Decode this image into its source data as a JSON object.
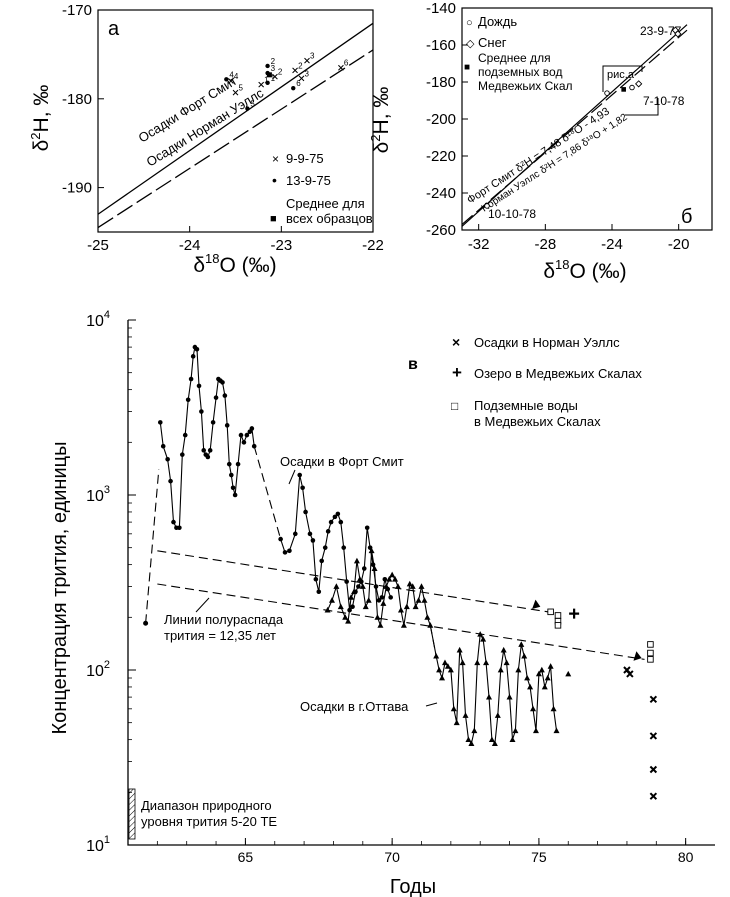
{
  "chart_data": [
    {
      "type": "scatter",
      "panel_letter": "а",
      "xlabel_main": "δ",
      "xlabel_sup": "18",
      "xlabel_rest": "O (‰)",
      "ylabel_main": "δ",
      "ylabel_sup": "2",
      "ylabel_rest": "H, ‰",
      "xlim": [
        -25,
        -22
      ],
      "ylim": [
        -195,
        -170
      ],
      "xticks": [
        -25,
        -24,
        -23,
        -22
      ],
      "yticks": [
        -190,
        -180,
        -170
      ],
      "xtick_labels": [
        "-25",
        "-24",
        "-23",
        "-22"
      ],
      "ytick_labels": [
        "-190",
        "-180",
        "-170"
      ],
      "lines": [
        {
          "name": "Осадки Форт Смит",
          "style": "solid",
          "from": [
            -25,
            -193.0
          ],
          "to": [
            -22,
            -171.5
          ]
        },
        {
          "name": "Осадки Норман Уэллс",
          "style": "dashed",
          "from": [
            -25,
            -194.5
          ],
          "to": [
            -22,
            -174.5
          ]
        }
      ],
      "line_labels": [
        "Осадки Форт Смит",
        "Осадки Норман Уэллс"
      ],
      "legend": {
        "placement": "bottom-right",
        "entries": [
          {
            "marker": "×",
            "label": "9-9-75"
          },
          {
            "marker": "•",
            "label": "13-9-75"
          },
          {
            "marker": "■",
            "label": "Среднее для всех образцов"
          }
        ]
      },
      "series": [
        {
          "name": "9-9-75",
          "marker": "x",
          "points": [
            {
              "x": -23.55,
              "y": -178.0,
              "label": "4"
            },
            {
              "x": -23.5,
              "y": -179.3,
              "label": "5"
            },
            {
              "x": -23.22,
              "y": -178.4,
              "label": "1"
            },
            {
              "x": -23.07,
              "y": -177.5,
              "label": "2"
            },
            {
              "x": -22.78,
              "y": -177.7,
              "label": "3"
            },
            {
              "x": -22.72,
              "y": -175.7,
              "label": "3"
            },
            {
              "x": -22.85,
              "y": -176.8,
              "label": "2"
            },
            {
              "x": -22.35,
              "y": -176.5,
              "label": "6"
            }
          ]
        },
        {
          "name": "13-9-75",
          "marker": "dot",
          "points": [
            {
              "x": -23.6,
              "y": -177.8,
              "label": "4"
            },
            {
              "x": -23.15,
              "y": -176.3,
              "label": "2"
            },
            {
              "x": -23.15,
              "y": -177.1,
              "label": "3"
            },
            {
              "x": -23.15,
              "y": -178.2,
              "label": "1"
            },
            {
              "x": -23.37,
              "y": -181.1,
              "label": "5"
            },
            {
              "x": -22.87,
              "y": -178.8,
              "label": "6"
            }
          ]
        },
        {
          "name": "Среднее для всех образцов",
          "marker": "square",
          "points": [
            {
              "x": -23.13,
              "y": -177.3,
              "label": ""
            }
          ]
        }
      ]
    },
    {
      "type": "scatter",
      "panel_letter": "б",
      "xlabel_main": "δ",
      "xlabel_sup": "18",
      "xlabel_rest": "O (‰)",
      "ylabel_main": "δ",
      "ylabel_sup": "2",
      "ylabel_rest": "H, ‰",
      "xlim": [
        -33,
        -18
      ],
      "ylim": [
        -260,
        -140
      ],
      "xticks": [
        -32,
        -28,
        -24,
        -20
      ],
      "yticks": [
        -260,
        -240,
        -220,
        -200,
        -180,
        -160,
        -140
      ],
      "xtick_labels": [
        "-32",
        "-28",
        "-24",
        "-20"
      ],
      "ytick_labels": [
        "-260",
        "-240",
        "-220",
        "-200",
        "-180",
        "-160",
        "-140"
      ],
      "legend": {
        "placement": "top-left",
        "entries": [
          {
            "marker": "○",
            "label": "Дождь"
          },
          {
            "marker": "◇",
            "label": "Снег"
          },
          {
            "marker": "■",
            "label": "Среднее для подземных вод Медвежьих Скал"
          }
        ]
      },
      "lines": [
        {
          "name": "Форт Смит",
          "style": "solid",
          "from": [
            -33,
            -258.0
          ],
          "to": [
            -19.5,
            -149.0
          ]
        },
        {
          "name": "Норман Уэллс",
          "style": "dashed",
          "from": [
            -33,
            -257.0
          ],
          "to": [
            -19.5,
            -152.0
          ]
        }
      ],
      "equations": {
        "fort_smith_name": "Форт Смит",
        "fort_smith_eq": "δ²H = 7,48 δ¹⁸O - 4,93",
        "norman_wells_name": "Норман Уэллс",
        "norman_wells_eq": "δ²H = 7,86 δ¹⁸O + 1,82"
      },
      "annotations": [
        "23-9-77",
        "рис.а",
        "7-10-78",
        "10-10-78"
      ],
      "series": [
        {
          "name": "Дождь",
          "marker": "circle",
          "points": [
            {
              "x": -31.5,
              "y": -247.0
            },
            {
              "x": -22.8,
              "y": -183.0
            },
            {
              "x": -24.3,
              "y": -186.0
            }
          ]
        },
        {
          "name": "Снег",
          "marker": "diamond",
          "points": [
            {
              "x": -20.2,
              "y": -152.0
            },
            {
              "x": -20.05,
              "y": -154.0
            },
            {
              "x": -22.4,
              "y": -181.0
            }
          ]
        },
        {
          "name": "Среднее для подземных вод Медвежьих Скал",
          "marker": "square",
          "points": [
            {
              "x": -23.3,
              "y": -184.0
            }
          ]
        }
      ]
    },
    {
      "type": "line",
      "panel_letter": "в",
      "xlabel": "Годы",
      "ylabel": "Концентрация трития, единицы",
      "y_scale": "log",
      "xlim": [
        1961,
        1981
      ],
      "ylim": [
        10,
        10000
      ],
      "xticks": [
        65,
        70,
        75,
        80
      ],
      "xtick_labels": [
        "65",
        "70",
        "75",
        "80"
      ],
      "yticks": [
        10,
        100,
        1000,
        10000
      ],
      "ytick_base": "10",
      "ytick_exponents": [
        "1",
        "2",
        "3",
        "4"
      ],
      "legend": {
        "placement": "top-right",
        "entries": [
          {
            "marker": "×",
            "label": "Осадки в Норман Уэллс"
          },
          {
            "marker": "+",
            "label": "Озеро в Медвежьих Скалах"
          },
          {
            "marker": "□",
            "label": "Подземные воды в Медвежьих Скалах"
          }
        ]
      },
      "annotations": {
        "fort_smith": "Осадки в Форт Смит",
        "ottawa": "Осадки в г.Оттава",
        "half_life": "Линии полураспада трития = 12,35 лет",
        "natural": "Диапазон природного уровня трития 5-20 ТЕ"
      },
      "series": [
        {
          "name": "Осадки в Форт Смит",
          "marker": "dot",
          "points": [
            [
              1962.1,
              2600
            ],
            [
              1962.2,
              1900
            ],
            [
              1962.35,
              1600
            ],
            [
              1962.45,
              1200
            ],
            [
              1962.55,
              700
            ],
            [
              1962.65,
              650
            ],
            [
              1962.75,
              650
            ],
            [
              1962.85,
              1700
            ],
            [
              1962.95,
              2200
            ],
            [
              1963.05,
              3500
            ],
            [
              1963.15,
              4600
            ],
            [
              1963.22,
              6200
            ],
            [
              1963.28,
              7000
            ],
            [
              1963.35,
              6800
            ],
            [
              1963.42,
              4200
            ],
            [
              1963.5,
              3000
            ],
            [
              1963.58,
              1800
            ],
            [
              1963.65,
              1700
            ],
            [
              1963.72,
              1650
            ],
            [
              1963.8,
              1800
            ],
            [
              1963.9,
              2600
            ],
            [
              1964.0,
              3600
            ],
            [
              1964.08,
              4600
            ],
            [
              1964.15,
              4500
            ],
            [
              1964.22,
              4400
            ],
            [
              1964.3,
              3700
            ],
            [
              1964.38,
              2500
            ],
            [
              1964.45,
              1500
            ],
            [
              1964.52,
              1300
            ],
            [
              1964.58,
              1100
            ],
            [
              1964.65,
              1000
            ],
            [
              1964.75,
              1500
            ],
            [
              1964.85,
              2200
            ],
            [
              1964.95,
              2000
            ],
            [
              1965.05,
              2200
            ],
            [
              1965.15,
              2300
            ],
            [
              1965.22,
              2400
            ],
            [
              1965.3,
              1900
            ],
            [
              1966.2,
              560
            ],
            [
              1966.35,
              470
            ],
            [
              1966.5,
              480
            ],
            [
              1966.7,
              600
            ],
            [
              1966.85,
              1300
            ],
            [
              1966.95,
              1100
            ],
            [
              1967.05,
              800
            ],
            [
              1967.2,
              600
            ],
            [
              1967.3,
              550
            ],
            [
              1967.4,
              330
            ],
            [
              1967.5,
              280
            ],
            [
              1967.6,
              420
            ],
            [
              1967.72,
              500
            ],
            [
              1967.82,
              620
            ],
            [
              1967.92,
              700
            ],
            [
              1968.05,
              750
            ],
            [
              1968.15,
              780
            ],
            [
              1968.25,
              700
            ],
            [
              1968.35,
              500
            ],
            [
              1968.45,
              320
            ],
            [
              1968.55,
              220
            ],
            [
              1968.65,
              230
            ],
            [
              1968.75,
              280
            ],
            [
              1968.85,
              300
            ],
            [
              1968.95,
              320
            ],
            [
              1969.05,
              380
            ],
            [
              1969.15,
              650
            ],
            [
              1969.25,
              500
            ],
            [
              1969.35,
              400
            ],
            [
              1969.45,
              300
            ],
            [
              1969.55,
              250
            ],
            [
              1969.65,
              260
            ],
            [
              1969.75,
              330
            ],
            [
              1969.85,
              290
            ],
            [
              1969.95,
              260
            ]
          ]
        },
        {
          "name": "Осадки в г.Оттава",
          "marker": "triangle",
          "points": [
            [
              1967.8,
              220
            ],
            [
              1967.95,
              250
            ],
            [
              1968.1,
              300
            ],
            [
              1968.25,
              230
            ],
            [
              1968.4,
              200
            ],
            [
              1968.5,
              190
            ],
            [
              1968.6,
              260
            ],
            [
              1968.7,
              280
            ],
            [
              1968.8,
              420
            ],
            [
              1968.9,
              330
            ],
            [
              1969.0,
              300
            ],
            [
              1969.1,
              230
            ],
            [
              1969.2,
              250
            ],
            [
              1969.3,
              480
            ],
            [
              1969.4,
              380
            ],
            [
              1969.5,
              200
            ],
            [
              1969.6,
              180
            ],
            [
              1969.7,
              240
            ],
            [
              1969.8,
              300
            ],
            [
              1969.9,
              330
            ],
            [
              1970.0,
              350
            ],
            [
              1970.1,
              330
            ],
            [
              1970.2,
              300
            ],
            [
              1970.3,
              220
            ],
            [
              1970.4,
              180
            ],
            [
              1970.5,
              230
            ],
            [
              1970.6,
              310
            ],
            [
              1970.7,
              300
            ],
            [
              1970.8,
              230
            ],
            [
              1970.9,
              250
            ],
            [
              1971.0,
              300
            ],
            [
              1971.1,
              250
            ],
            [
              1971.2,
              200
            ],
            [
              1971.3,
              180
            ],
            [
              1971.5,
              120
            ],
            [
              1971.6,
              100
            ],
            [
              1971.7,
              90
            ],
            [
              1971.8,
              110
            ],
            [
              1971.9,
              105
            ],
            [
              1972.0,
              100
            ],
            [
              1972.1,
              60
            ],
            [
              1972.2,
              50
            ],
            [
              1972.3,
              130
            ],
            [
              1972.4,
              110
            ],
            [
              1972.5,
              55
            ],
            [
              1972.6,
              40
            ],
            [
              1972.7,
              38
            ],
            [
              1972.8,
              45
            ],
            [
              1972.9,
              110
            ],
            [
              1973.0,
              160
            ],
            [
              1973.1,
              150
            ],
            [
              1973.2,
              110
            ],
            [
              1973.3,
              70
            ],
            [
              1973.4,
              40
            ],
            [
              1973.5,
              38
            ],
            [
              1973.6,
              55
            ],
            [
              1973.7,
              100
            ],
            [
              1973.8,
              130
            ],
            [
              1973.9,
              110
            ],
            [
              1974.0,
              70
            ],
            [
              1974.1,
              40
            ],
            [
              1974.2,
              45
            ],
            [
              1974.3,
              100
            ],
            [
              1974.4,
              140
            ],
            [
              1974.5,
              120
            ],
            [
              1974.6,
              90
            ],
            [
              1974.7,
              80
            ],
            [
              1974.8,
              60
            ],
            [
              1974.9,
              45
            ],
            [
              1975.0,
              95
            ],
            [
              1975.1,
              100
            ],
            [
              1975.2,
              80
            ],
            [
              1975.3,
              90
            ],
            [
              1975.4,
              105
            ],
            [
              1975.5,
              60
            ],
            [
              1975.6,
              45
            ]
          ]
        },
        {
          "name": "Осадки в Норман Уэллс",
          "marker": "x",
          "points": [
            [
              1978.0,
              100
            ],
            [
              1978.1,
              95
            ],
            [
              1978.9,
              68
            ],
            [
              1978.9,
              42
            ],
            [
              1978.9,
              27
            ],
            [
              1978.9,
              19
            ]
          ]
        },
        {
          "name": "Озеро в Медвежьих Скалах",
          "marker": "plus",
          "points": [
            [
              1976.2,
              210
            ]
          ]
        },
        {
          "name": "Подземные воды в Медвежьих Скалах",
          "marker": "square_open",
          "points": [
            [
              1975.4,
              215
            ],
            [
              1975.65,
              205
            ],
            [
              1975.65,
              190
            ],
            [
              1975.65,
              180
            ],
            [
              1978.8,
              140
            ],
            [
              1978.8,
              125
            ],
            [
              1978.8,
              115
            ]
          ]
        }
      ]
    }
  ]
}
